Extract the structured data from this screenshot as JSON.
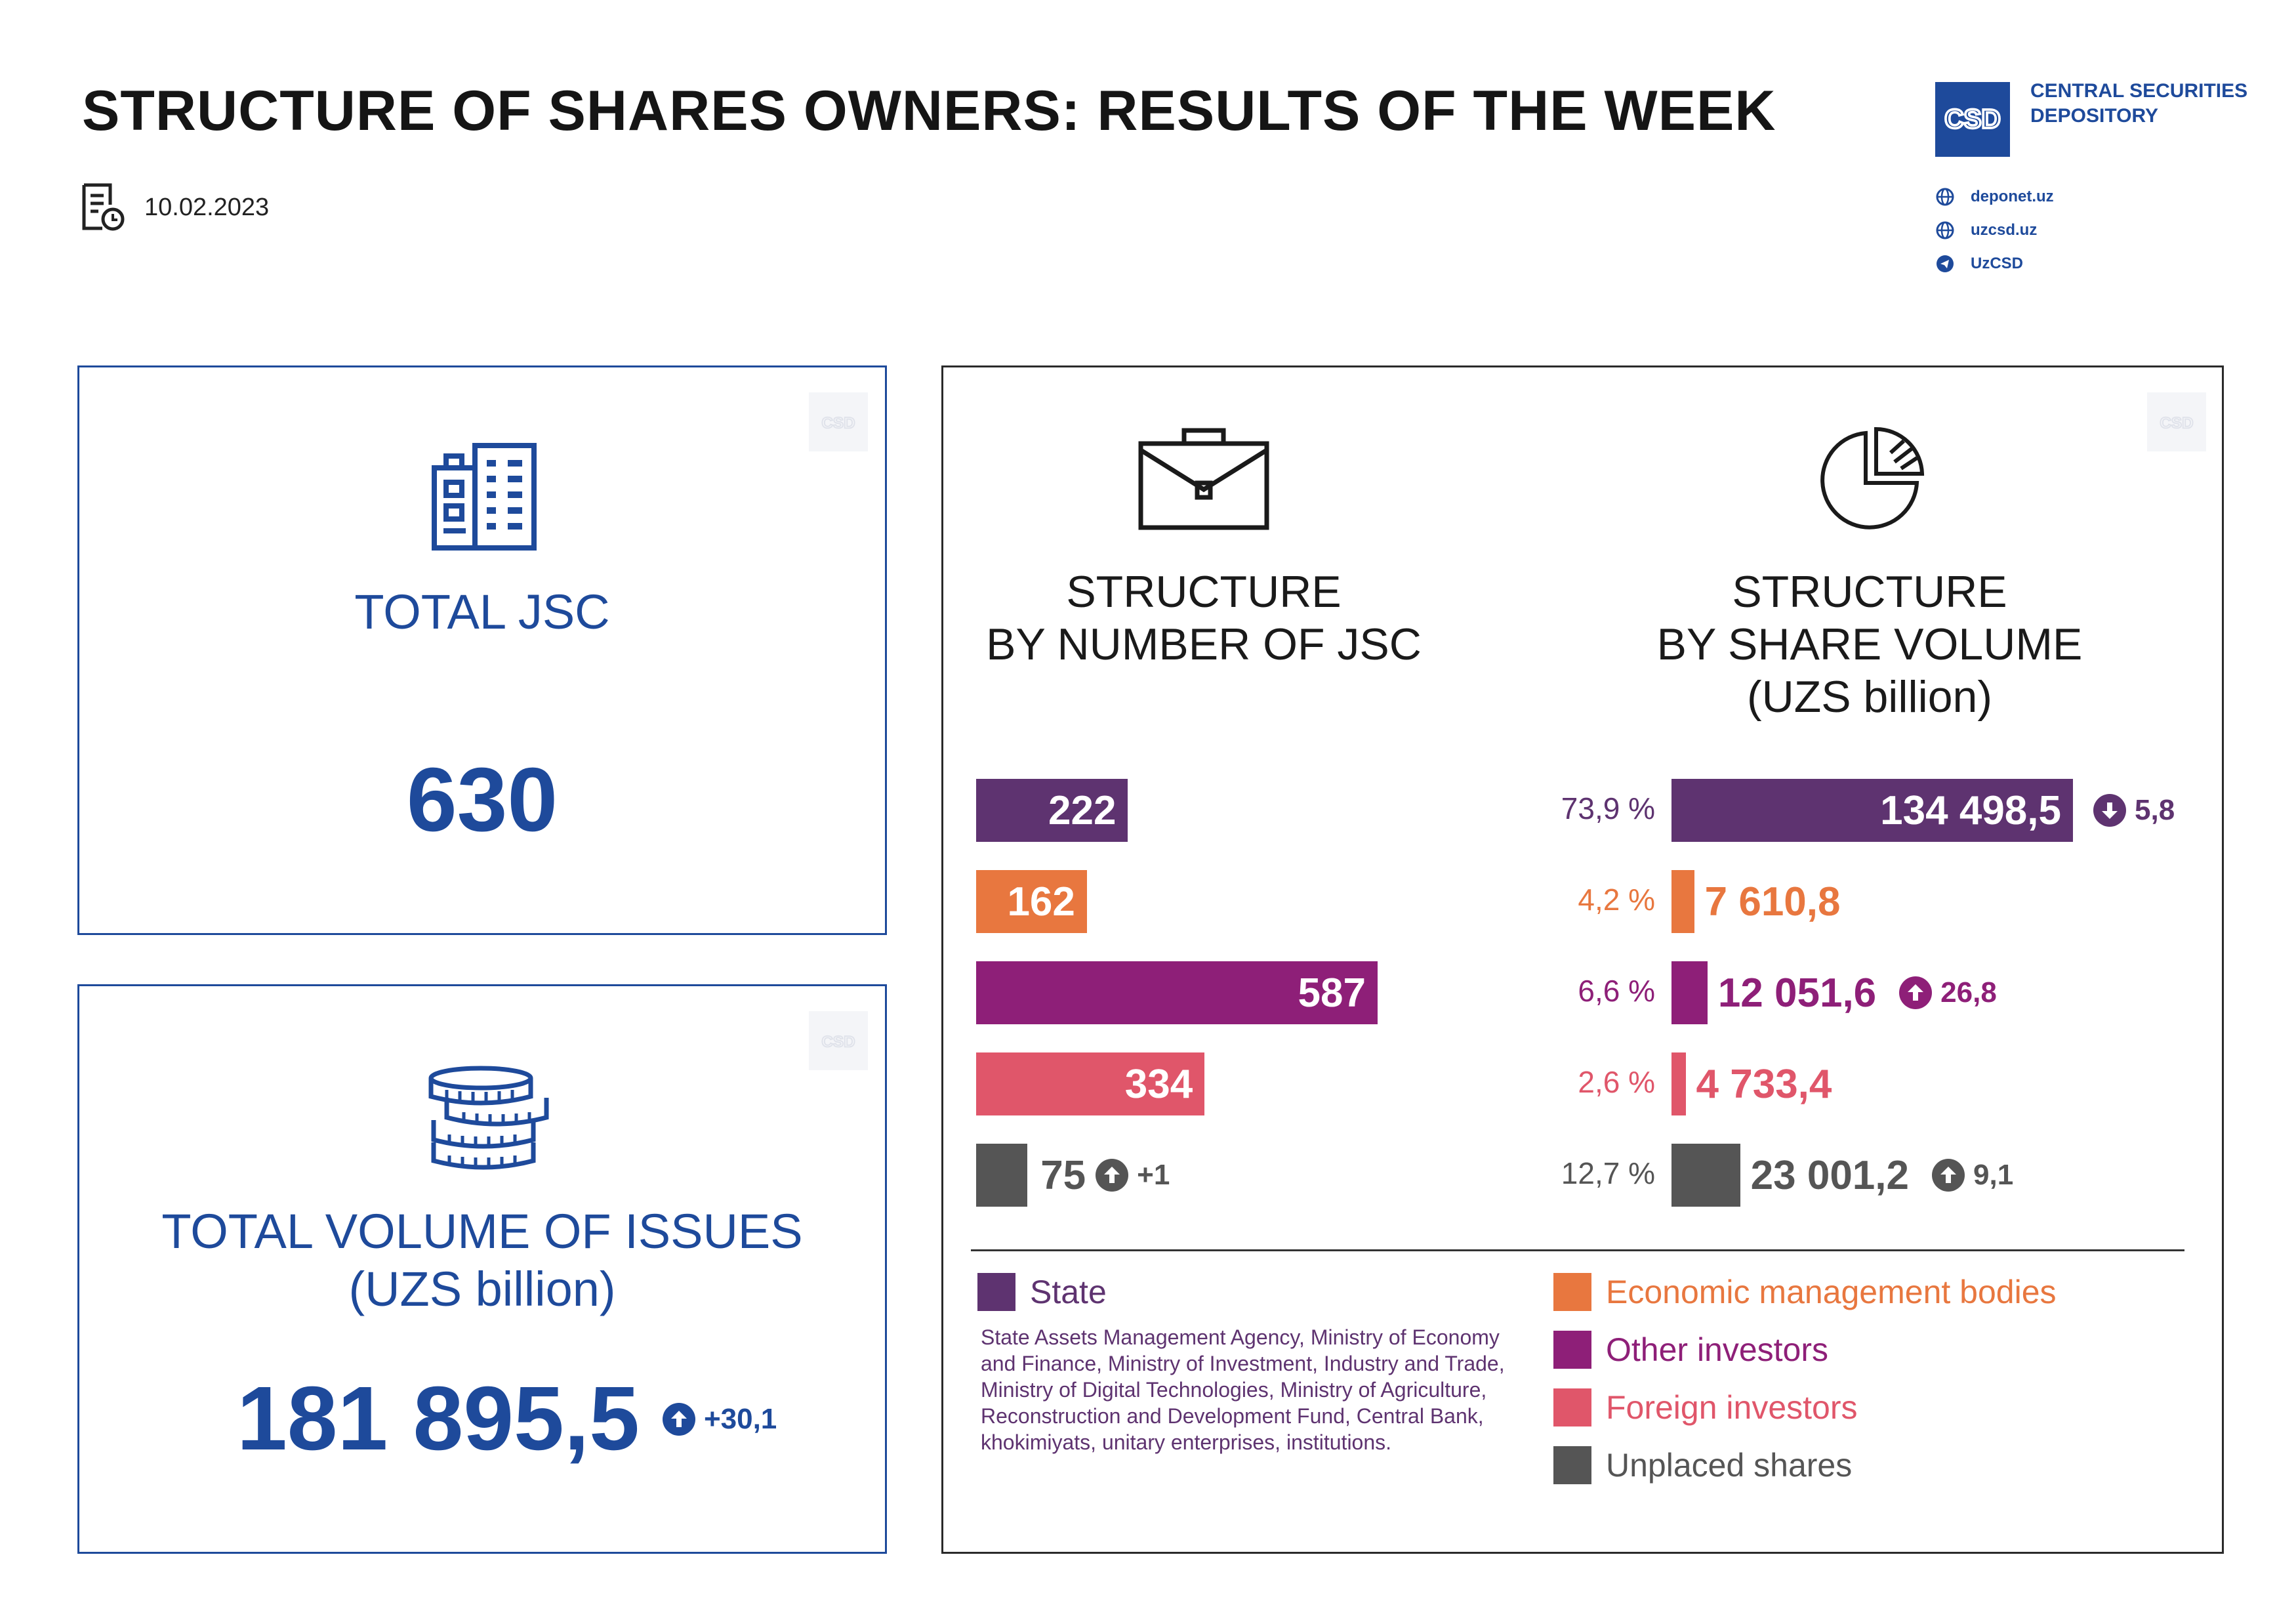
{
  "header": {
    "title": "STRUCTURE OF SHARES OWNERS: RESULTS OF THE WEEK",
    "date": "10.02.2023"
  },
  "brand": {
    "name_line1": "CENTRAL SECURITIES",
    "name_line2": "DEPOSITORY",
    "links": [
      "deponet.uz",
      "uzcsd.uz",
      "UzCSD"
    ]
  },
  "total_jsc": {
    "label": "TOTAL JSC",
    "value": "630"
  },
  "total_volume": {
    "label_line1": "TOTAL VOLUME OF ISSUES",
    "label_line2": "(UZS billion)",
    "value": "181 895,5",
    "change": "+30,1"
  },
  "colors": {
    "brand_blue": "#1e4a9b",
    "state": "#5e3370",
    "economic": "#e8773f",
    "other": "#8e1f78",
    "foreign": "#e0566a",
    "unplaced": "#555555"
  },
  "chart_data": [
    {
      "type": "bar",
      "orientation": "horizontal",
      "title_line1": "STRUCTURE",
      "title_line2": "BY NUMBER OF JSC",
      "categories": [
        "State",
        "Economic management bodies",
        "Other investors",
        "Foreign investors",
        "Unplaced shares"
      ],
      "values": [
        222,
        162,
        587,
        334,
        75
      ],
      "labels": [
        "222",
        "162",
        "587",
        "334",
        "75"
      ],
      "changes": [
        "",
        "",
        "",
        "",
        "+1"
      ],
      "change_dirs": [
        "",
        "",
        "",
        "",
        "up"
      ]
    },
    {
      "type": "bar",
      "orientation": "horizontal",
      "title_line1": "STRUCTURE",
      "title_line2": "BY SHARE VOLUME",
      "title_line3": "(UZS billion)",
      "categories": [
        "State",
        "Economic management bodies",
        "Other investors",
        "Foreign investors",
        "Unplaced shares"
      ],
      "values": [
        134498.5,
        7610.8,
        12051.6,
        4733.4,
        23001.2
      ],
      "labels": [
        "134 498,5",
        "7 610,8",
        "12 051,6",
        "4 733,4",
        "23 001,2"
      ],
      "percents": [
        "73,9 %",
        "4,2 %",
        "6,6 %",
        "2,6 %",
        "12,7 %"
      ],
      "changes": [
        "5,8",
        "",
        "26,8",
        "",
        "9,1"
      ],
      "change_dirs": [
        "down",
        "",
        "up",
        "",
        "up"
      ]
    }
  ],
  "legend": {
    "state": "State",
    "state_note": "State Assets Management Agency, Ministry of Economy and Finance, Ministry of Investment, Industry and Trade, Ministry of Digital Technologies, Ministry of Agriculture, Reconstruction and Development Fund, Central Bank, khokimiyats, unitary enterprises, institutions.",
    "economic": "Economic management bodies",
    "other": "Other investors",
    "foreign": "Foreign investors",
    "unplaced": "Unplaced shares"
  }
}
